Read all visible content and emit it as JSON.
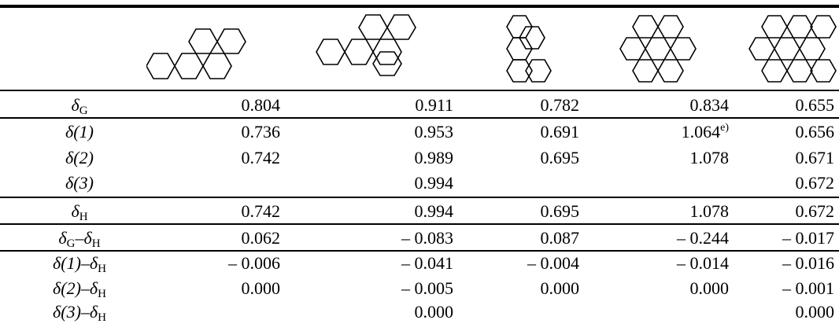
{
  "table": {
    "structures": [
      {
        "name": "benzo[ghi]fluoranthene-like four-ring structure",
        "icon": "fused-hexagon-structure-1"
      },
      {
        "name": "five-ring fused structure",
        "icon": "fused-hexagon-structure-2"
      },
      {
        "name": "four-ring stacked structure",
        "icon": "fused-hexagon-structure-3"
      },
      {
        "name": "seven-ring fused structure",
        "icon": "fused-hexagon-structure-4"
      },
      {
        "name": "ten-ring fused structure",
        "icon": "fused-hexagon-structure-5"
      }
    ],
    "rows": [
      {
        "sym": "δ",
        "sub": "G",
        "values": [
          "0.804",
          "0.911",
          "0.782",
          "0.834",
          "0.655"
        ]
      },
      {
        "sym": "δ(1)",
        "sub": "",
        "values": [
          "0.736",
          "0.953",
          "0.691",
          "1.064",
          "0.656"
        ],
        "note": "e)"
      },
      {
        "sym": "δ(2)",
        "sub": "",
        "values": [
          "0.742",
          "0.989",
          "0.695",
          "1.078",
          "0.671"
        ]
      },
      {
        "sym": "δ(3)",
        "sub": "",
        "values": [
          "",
          "0.994",
          "",
          "",
          "0.672"
        ]
      },
      {
        "sym": "δ",
        "sub": "H",
        "values": [
          "0.742",
          "0.994",
          "0.695",
          "1.078",
          "0.672"
        ]
      },
      {
        "sym": "δ",
        "sub": "G",
        "sym2": "–δ",
        "sub2": "H",
        "values": [
          "0.062",
          "– 0.083",
          "0.087",
          "– 0.244",
          "– 0.017"
        ]
      },
      {
        "sym": "δ(1)–δ",
        "sub": "H",
        "values": [
          "– 0.006",
          "– 0.041",
          "– 0.004",
          "– 0.014",
          "– 0.016"
        ]
      },
      {
        "sym": "δ(2)–δ",
        "sub": "H",
        "values": [
          "0.000",
          "– 0.005",
          "0.000",
          "0.000",
          "– 0.001"
        ]
      },
      {
        "sym": "δ(3)–δ",
        "sub": "H",
        "values": [
          "",
          "0.000",
          "",
          "",
          "0.000"
        ]
      }
    ]
  }
}
